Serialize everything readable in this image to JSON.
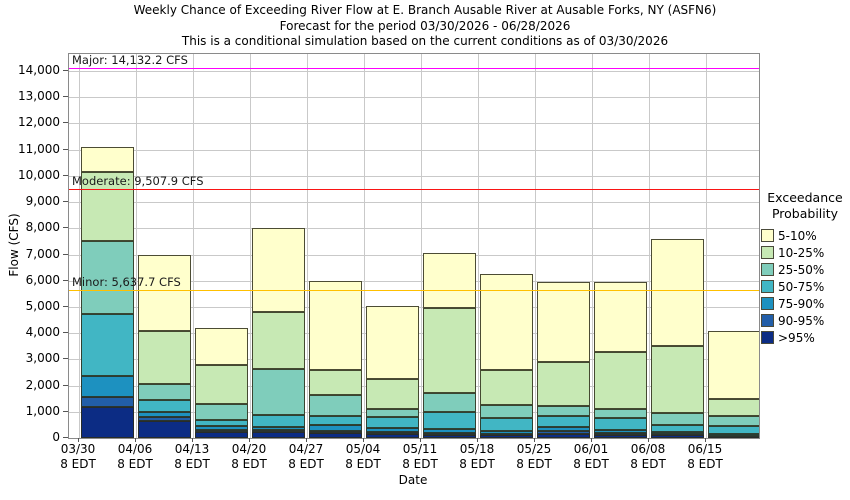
{
  "title": {
    "line1": "Weekly Chance of Exceeding River Flow at E. Branch Ausable River at Ausable Forks, NY (ASFN6)",
    "line2": "Forecast for the period 03/30/2026 - 06/28/2026",
    "line3": "This is a conditional simulation based on the current conditions as of 03/30/2026"
  },
  "y_axis": {
    "label": "Flow (CFS)",
    "tick_values": [
      0,
      1000,
      2000,
      3000,
      4000,
      5000,
      6000,
      7000,
      8000,
      9000,
      10000,
      11000,
      12000,
      13000,
      14000
    ],
    "tick_labels": [
      "0",
      "1,000",
      "2,000",
      "3,000",
      "4,000",
      "5,000",
      "6,000",
      "7,000",
      "8,000",
      "9,000",
      "10,000",
      "11,000",
      "12,000",
      "13,000",
      "14,000"
    ],
    "axis_max_cfs": 14649
  },
  "x_axis": {
    "label": "Date",
    "tick_sublabel": "8 EDT"
  },
  "thresholds": [
    {
      "name": "major",
      "label": "Major: 14,132.2 CFS",
      "value_cfs": 14132.2,
      "color": "#ff00ff"
    },
    {
      "name": "moderate",
      "label": "Moderate: 9,507.9 CFS",
      "value_cfs": 9507.9,
      "color": "#fa1414"
    },
    {
      "name": "minor",
      "label": "Minor: 5,637.7 CFS",
      "value_cfs": 5637.7,
      "color": "#ffc000"
    }
  ],
  "legend": {
    "title_line1": "Exceedance",
    "title_line2": "Probability",
    "items": [
      {
        "label": "5-10%",
        "color": "#ffffcc"
      },
      {
        "label": "10-25%",
        "color": "#c7e9b4"
      },
      {
        "label": "25-50%",
        "color": "#7fcdbb"
      },
      {
        "label": "50-75%",
        "color": "#41b6c4"
      },
      {
        "label": "75-90%",
        "color": "#1d91c0"
      },
      {
        "label": "90-95%",
        "color": "#225ea8"
      },
      {
        "label": ">95%",
        "color": "#0c2c84"
      }
    ]
  },
  "chart_data": {
    "type": "bar",
    "stacked": true,
    "title": "Weekly Chance of Exceeding River Flow at E. Branch Ausable River at Ausable Forks, NY (ASFN6)",
    "xlabel": "Date",
    "ylabel": "Flow (CFS)",
    "ylim": [
      0,
      14649
    ],
    "grid": true,
    "legend_position": "right",
    "categories": [
      "03/30",
      "04/06",
      "04/13",
      "04/20",
      "04/27",
      "05/04",
      "05/11",
      "05/18",
      "05/25",
      "06/01",
      "06/08",
      "06/15"
    ],
    "category_sublabel": "8 EDT",
    "series_note": "values are cumulative stack tops in CFS, bands drawn bottom-up in listed order",
    "series": [
      {
        "name": ">95%",
        "color": "#0c2c84",
        "cumulative_top_cfs": [
          1200,
          650,
          240,
          230,
          180,
          150,
          125,
          100,
          150,
          115,
          100,
          50
        ]
      },
      {
        "name": "90-95%",
        "color": "#225ea8",
        "cumulative_top_cfs": [
          1550,
          800,
          320,
          300,
          260,
          230,
          200,
          165,
          250,
          190,
          160,
          90
        ]
      },
      {
        "name": "75-90%",
        "color": "#1d91c0",
        "cumulative_top_cfs": [
          2350,
          1000,
          450,
          430,
          480,
          380,
          330,
          270,
          420,
          300,
          240,
          140
        ]
      },
      {
        "name": "50-75%",
        "color": "#41b6c4",
        "cumulative_top_cfs": [
          4750,
          1450,
          700,
          870,
          840,
          790,
          1000,
          750,
          840,
          750,
          500,
          460
        ]
      },
      {
        "name": "25-50%",
        "color": "#7fcdbb",
        "cumulative_top_cfs": [
          7500,
          2050,
          1300,
          2650,
          1650,
          1100,
          1700,
          1250,
          1230,
          1100,
          970,
          840
        ]
      },
      {
        "name": "10-25%",
        "color": "#c7e9b4",
        "cumulative_top_cfs": [
          10150,
          4100,
          2800,
          4800,
          2600,
          2250,
          4950,
          2600,
          2900,
          3300,
          3500,
          1500
        ]
      },
      {
        "name": "5-10%",
        "color": "#ffffcc",
        "cumulative_top_cfs": [
          11100,
          7000,
          4200,
          8000,
          6000,
          5050,
          7050,
          6250,
          5950,
          5950,
          7600,
          4100
        ]
      }
    ]
  }
}
